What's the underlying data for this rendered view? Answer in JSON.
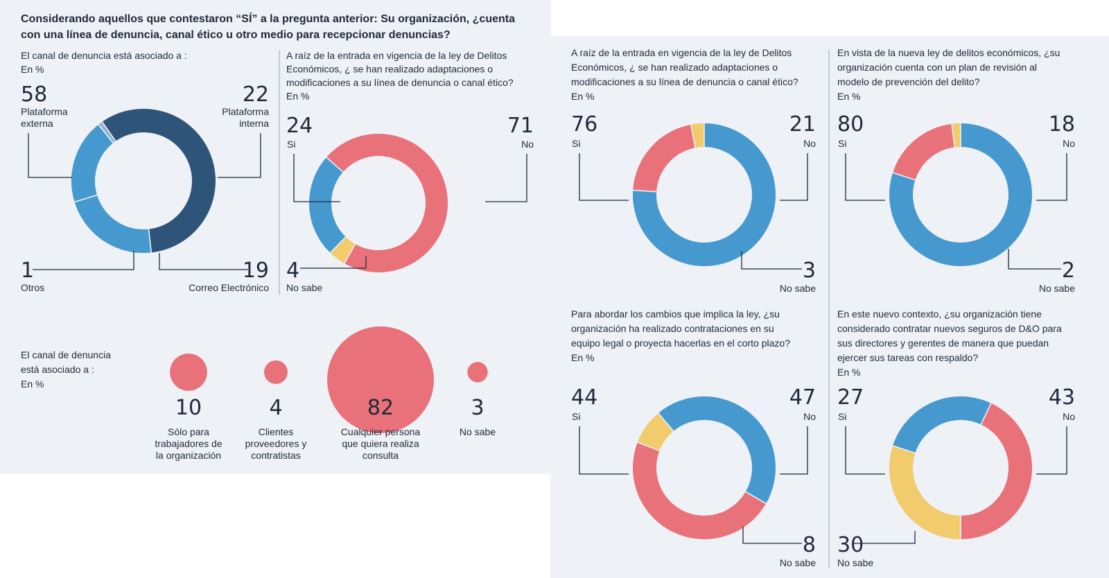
{
  "colors": {
    "dark_blue": "#2f5479",
    "blue": "#4699cf",
    "red": "#e8717a",
    "yellow": "#f1cb6c",
    "ring_gap": "#eef1f5"
  },
  "header": {
    "line1": "Considerando aquellos que contestaron “SÍ” a la pregunta anterior: Su organización, ¿cuenta",
    "line2": "con una línea de denuncia, canal ético u otro medio para recepcionar denuncias?"
  },
  "chart_data": [
    {
      "id": "c1",
      "type": "pie",
      "variant": "donut",
      "title_lines": [
        "El canal de denuncia está asociado a :",
        "En %"
      ],
      "slices": [
        {
          "label": "Plataforma externa",
          "label_lines": [
            "Plataforma",
            "externa"
          ],
          "value": 58,
          "color": "#2f5479"
        },
        {
          "label": "Plataforma interna",
          "label_lines": [
            "Plataforma",
            "interna"
          ],
          "value": 22,
          "color": "#4699cf"
        },
        {
          "label": "Correo Electrónico",
          "label_lines": [
            "Correo Electrónico"
          ],
          "value": 19,
          "color": "#4699cf"
        },
        {
          "label": "Otros",
          "label_lines": [
            "Otros"
          ],
          "value": 1,
          "color": "#8fb0d0"
        }
      ]
    },
    {
      "id": "c2",
      "type": "pie",
      "variant": "donut",
      "title_lines": [
        "A raíz de la entrada en vigencia de la ley de Delitos",
        "Económicos, ¿ se han realizado adaptaciones o",
        "modificaciones a su línea de denuncia o canal ético?",
        "En %"
      ],
      "slices": [
        {
          "label": "Si",
          "label_lines": [
            "Si"
          ],
          "value": 24,
          "color": "#4699cf"
        },
        {
          "label": "No",
          "label_lines": [
            "No"
          ],
          "value": 71,
          "color": "#e8717a"
        },
        {
          "label": "No sabe",
          "label_lines": [
            "No sabe"
          ],
          "value": 4,
          "color": "#f1cb6c"
        }
      ]
    },
    {
      "id": "c3",
      "type": "scatter",
      "variant": "bubble",
      "title_lines": [
        "El canal de denuncia",
        "está asociado a :",
        "En %"
      ],
      "categories": [
        "Sólo para trabajadores de la organización",
        "Clientes proveedores y contratistas",
        "Cualquier persona que quiera realiza consulta",
        "No sabe"
      ],
      "category_lines": [
        [
          "Sólo para",
          "trabajadores de",
          "la organización"
        ],
        [
          "Clientes",
          "proveedores y",
          "contratistas"
        ],
        [
          "Cualquier persona",
          "que quiera realiza",
          "consulta"
        ],
        [
          "No sabe"
        ]
      ],
      "values": [
        10,
        4,
        82,
        3
      ],
      "color": "#e8717a"
    },
    {
      "id": "c4",
      "type": "pie",
      "variant": "donut",
      "title_lines": [
        "A raíz de la entrada en vigencia de la ley de Delitos",
        "Económicos, ¿ se han realizado adaptaciones o",
        "modificaciones a su línea de denuncia o canal ético?",
        "En %"
      ],
      "slices": [
        {
          "label": "Si",
          "label_lines": [
            "Si"
          ],
          "value": 76,
          "color": "#4699cf"
        },
        {
          "label": "No",
          "label_lines": [
            "No"
          ],
          "value": 21,
          "color": "#e8717a"
        },
        {
          "label": "No sabe",
          "label_lines": [
            "No sabe"
          ],
          "value": 3,
          "color": "#f1cb6c"
        }
      ]
    },
    {
      "id": "c5",
      "type": "pie",
      "variant": "donut",
      "title_lines": [
        "En vista de la nueva ley de delitos económicos, ¿su",
        "organización cuenta con un plan de revisión al",
        "modelo de prevención del delito?",
        "En %"
      ],
      "slices": [
        {
          "label": "Si",
          "label_lines": [
            "Si"
          ],
          "value": 80,
          "color": "#4699cf"
        },
        {
          "label": "No",
          "label_lines": [
            "No"
          ],
          "value": 18,
          "color": "#e8717a"
        },
        {
          "label": "No sabe",
          "label_lines": [
            "No sabe"
          ],
          "value": 2,
          "color": "#f1cb6c"
        }
      ]
    },
    {
      "id": "c6",
      "type": "pie",
      "variant": "donut",
      "title_lines": [
        "Para abordar los cambios que implica la ley, ¿su",
        "organización ha realizado contrataciones en su",
        "equipo legal o proyecta hacerlas en el corto plazo?",
        "En %"
      ],
      "slices": [
        {
          "label": "Si",
          "label_lines": [
            "Si"
          ],
          "value": 44,
          "color": "#4699cf"
        },
        {
          "label": "No",
          "label_lines": [
            "No"
          ],
          "value": 47,
          "color": "#e8717a"
        },
        {
          "label": "No sabe",
          "label_lines": [
            "No sabe"
          ],
          "value": 8,
          "color": "#f1cb6c"
        }
      ]
    },
    {
      "id": "c7",
      "type": "pie",
      "variant": "donut",
      "title_lines": [
        "En este nuevo contexto, ¿su organización tiene",
        "considerado contratar nuevos seguros de D&O para",
        "sus directores y gerentes de manera que puedan",
        "ejercer sus tareas con respaldo?",
        "En %"
      ],
      "slices": [
        {
          "label": "Si",
          "label_lines": [
            "Si"
          ],
          "value": 27,
          "color": "#4699cf"
        },
        {
          "label": "No",
          "label_lines": [
            "No"
          ],
          "value": 43,
          "color": "#e8717a"
        },
        {
          "label": "No sabe",
          "label_lines": [
            "No sabe"
          ],
          "value": 30,
          "color": "#f1cb6c"
        }
      ]
    }
  ]
}
